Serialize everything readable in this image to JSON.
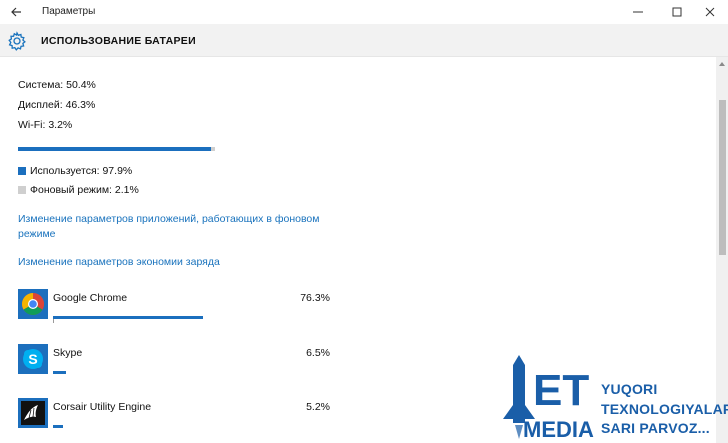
{
  "window": {
    "title": "Параметры"
  },
  "header": {
    "title": "ИСПОЛЬЗОВАНИЕ БАТАРЕИ"
  },
  "breakdown": {
    "system": "Система: 50.4%",
    "display": "Дисплей: 46.3%",
    "wifi": "Wi-Fi: 3.2%"
  },
  "usage_bar": {
    "in_use_fraction": 0.979
  },
  "legend": {
    "in_use": "Используется: 97.9%",
    "background": "Фоновый режим: 2.1%",
    "in_use_color": "#1b6fbe",
    "background_color": "#cfcfcf"
  },
  "links": {
    "background_apps": "Изменение параметров приложений, работающих в фоновом режиме",
    "battery_saver": "Изменение параметров экономии заряда"
  },
  "apps": [
    {
      "name": "Google Chrome",
      "percent": "76.3%",
      "value": 76.3,
      "icon": "chrome-icon"
    },
    {
      "name": "Skype",
      "percent": "6.5%",
      "value": 6.5,
      "icon": "skype-icon"
    },
    {
      "name": "Corsair Utility Engine",
      "percent": "5.2%",
      "value": 5.2,
      "icon": "corsair-icon"
    }
  ],
  "watermark": {
    "letters": "ET",
    "word": "MEDIA",
    "line1": "YUQORI",
    "line2": "TEXNOLOGIYALAR",
    "line3": "SARI PARVOZ..."
  }
}
